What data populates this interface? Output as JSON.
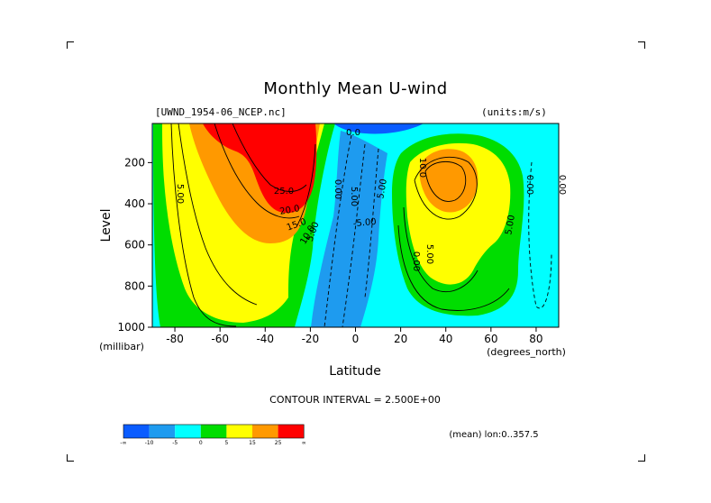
{
  "title": "Monthly Mean U-wind",
  "source_label": "[UWND_1954-06_NCEP.nc]",
  "units_label": "(units:m/s)",
  "y_unit": "(millibar)",
  "x_unit": "(degrees_north)",
  "contour_interval": "CONTOUR INTERVAL = 2.500E+00",
  "footer_note": "(mean) lon:0..357.5",
  "colors": {
    "lt_neg5": "#0a5cff",
    "neg10_neg5": "#1e9bef",
    "neg5_0": "#00ffff",
    "c0_5": "#00dd00",
    "c5_15": "#ffff00",
    "c15_25": "#ff9900",
    "gt25": "#ff0000"
  },
  "colorbar": {
    "labels": [
      "-∞",
      "-10",
      "-5",
      "0",
      "5",
      "15",
      "25",
      "∞"
    ]
  },
  "chart_data": {
    "type": "heatmap",
    "title": "Monthly Mean U-wind",
    "xlabel": "Latitude",
    "ylabel": "Level",
    "x_ticks": [
      "-80",
      "-60",
      "-40",
      "-20",
      "0",
      "20",
      "40",
      "60",
      "80"
    ],
    "x_tick_values": [
      -80,
      -60,
      -40,
      -20,
      0,
      20,
      40,
      60,
      80
    ],
    "y_ticks": [
      "200",
      "400",
      "600",
      "800",
      "1000"
    ],
    "y_tick_values": [
      200,
      400,
      600,
      800,
      1000
    ],
    "xlim": [
      -90,
      90
    ],
    "ylim": [
      1000,
      10
    ],
    "contour_labels": [
      "5.00",
      "25.0",
      "20.0",
      "15.0",
      "10.0",
      "5.00",
      "0.00",
      "0.0",
      "5.00",
      "-5.00",
      "10.0",
      "0.00",
      "5.00",
      "5.00",
      "0.00",
      "0.00",
      "5.00"
    ],
    "features": [
      {
        "name": "southern_jet_max",
        "lat": -30,
        "level": 200,
        "value_range": ">25"
      },
      {
        "name": "northern_jet_max",
        "lat": 40,
        "level": 200,
        "value_range": "15-25"
      },
      {
        "name": "equatorial_easterlies",
        "lat": 0,
        "level": 500,
        "value_range": "-10 to -5"
      }
    ]
  }
}
